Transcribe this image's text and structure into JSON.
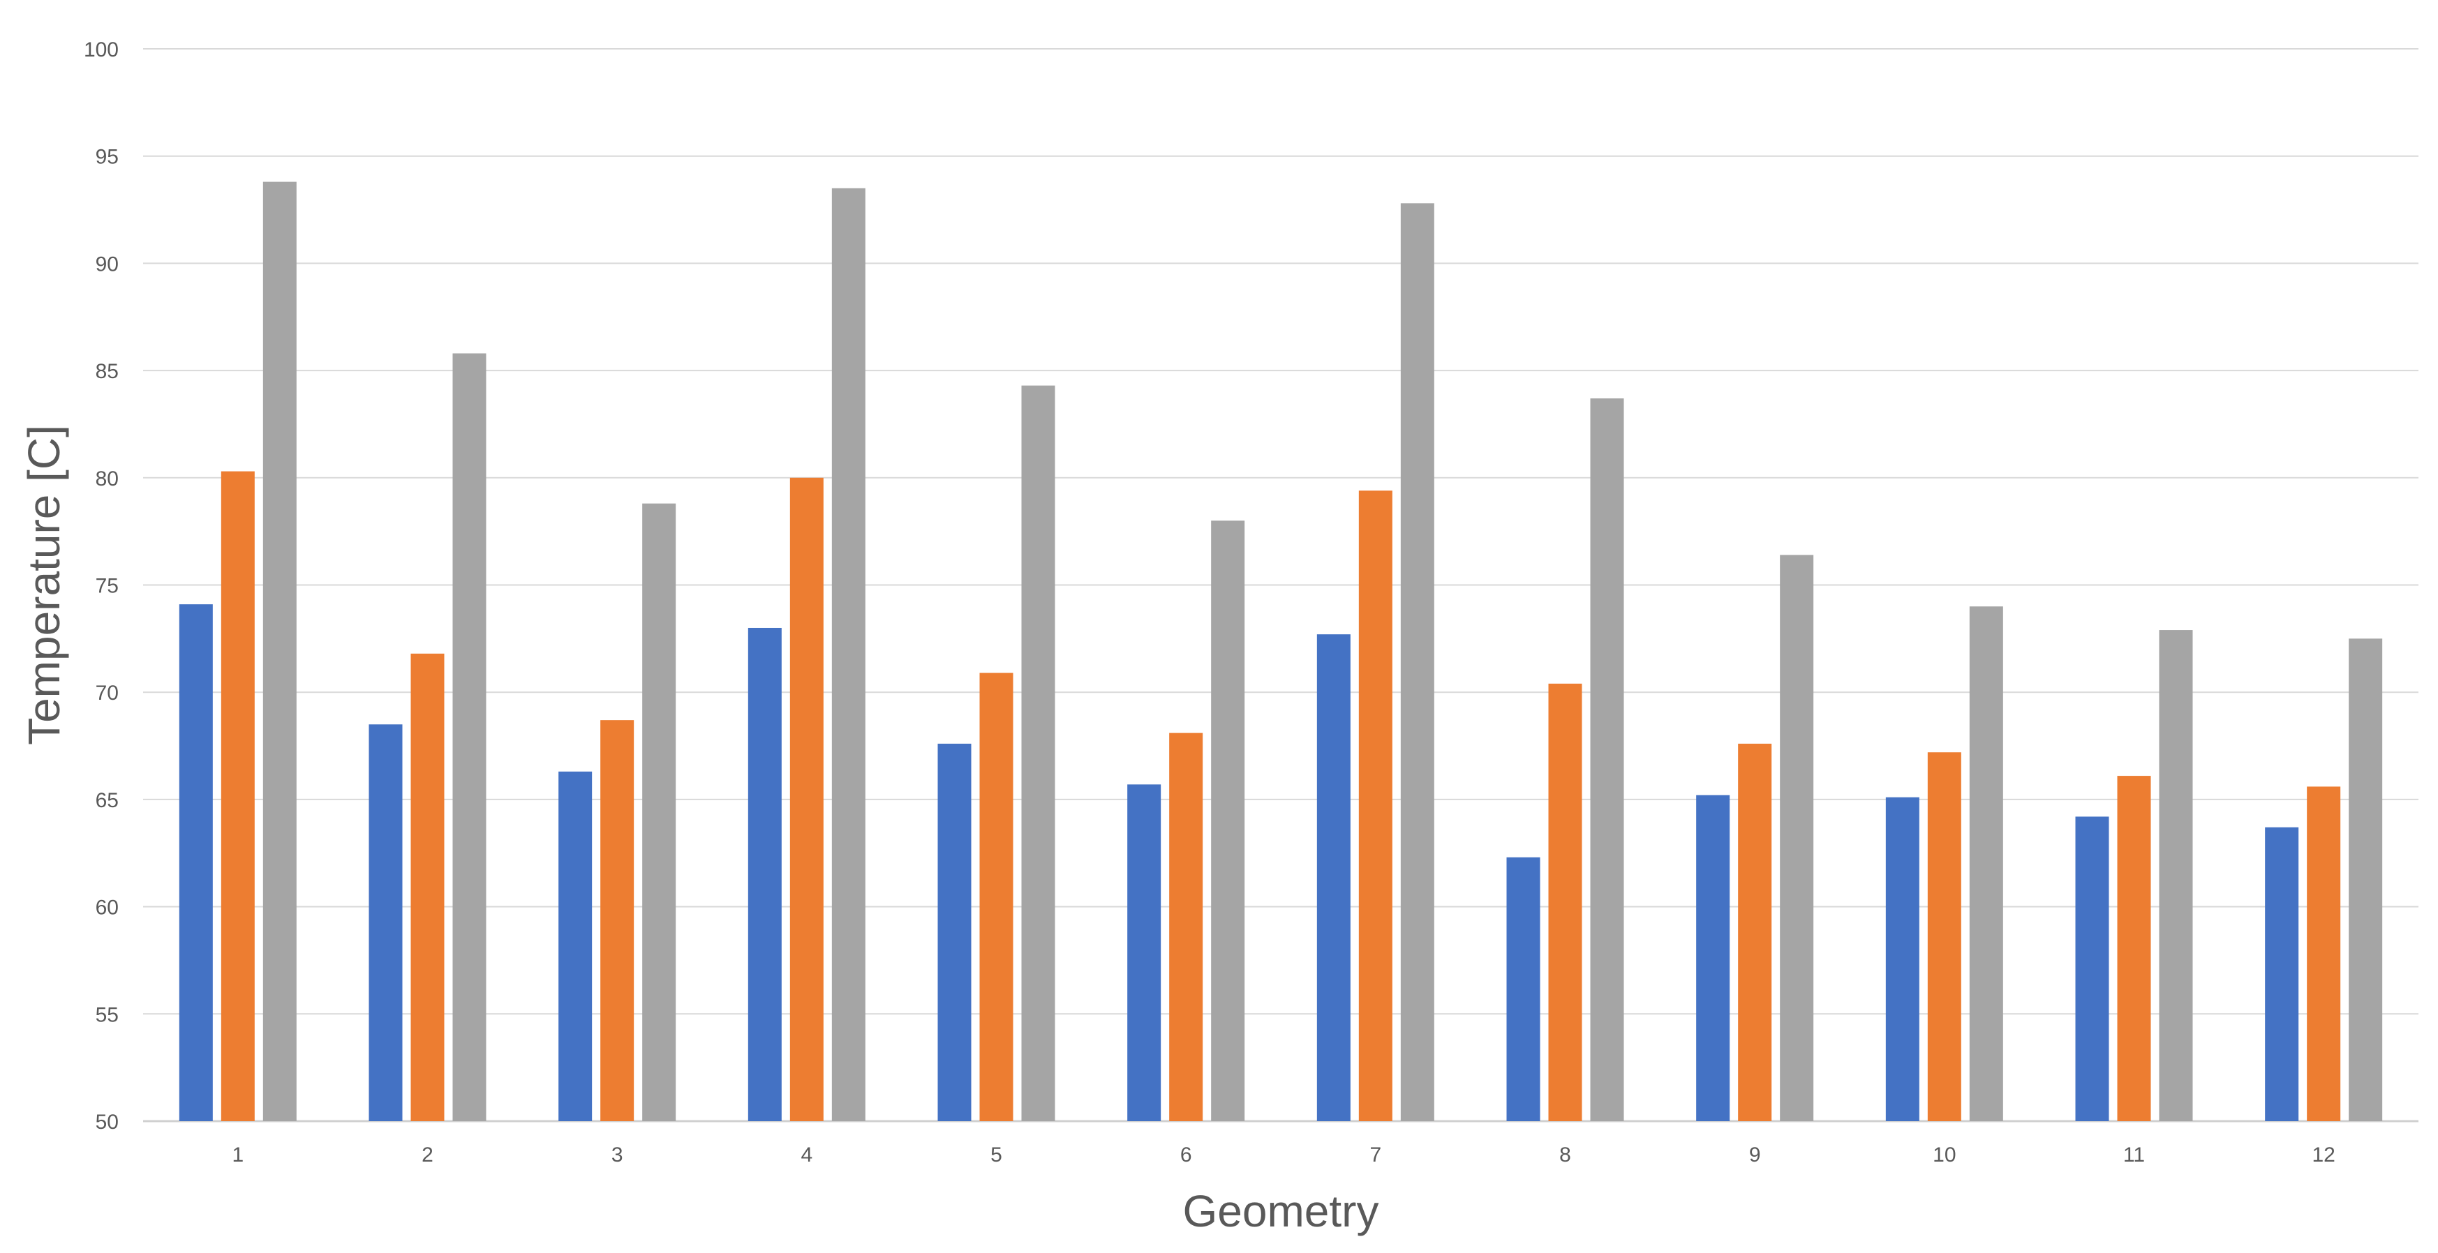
{
  "chart_data": {
    "type": "bar",
    "title": "",
    "xlabel": "Geometry",
    "ylabel": "Temperature [C]",
    "ylim": [
      50,
      100
    ],
    "yticks": [
      "50",
      "55",
      "60",
      "65",
      "70",
      "75",
      "80",
      "85",
      "90",
      "95",
      "100"
    ],
    "grid": true,
    "legend": "none",
    "categories": [
      "1",
      "2",
      "3",
      "4",
      "5",
      "6",
      "7",
      "8",
      "9",
      "10",
      "11",
      "12"
    ],
    "series": [
      {
        "color": "#4472c4",
        "values": [
          74.1,
          68.5,
          66.3,
          73.0,
          67.6,
          65.7,
          72.7,
          62.3,
          65.2,
          65.1,
          64.2,
          63.7
        ]
      },
      {
        "color": "#ed7d31",
        "values": [
          80.3,
          71.8,
          68.7,
          80.0,
          70.9,
          68.1,
          79.4,
          70.4,
          67.6,
          67.2,
          66.1,
          65.6
        ]
      },
      {
        "color": "#a5a5a5",
        "values": [
          93.8,
          85.8,
          78.8,
          93.5,
          84.3,
          78.0,
          92.8,
          83.7,
          76.4,
          74.0,
          72.9,
          72.5
        ]
      }
    ]
  }
}
